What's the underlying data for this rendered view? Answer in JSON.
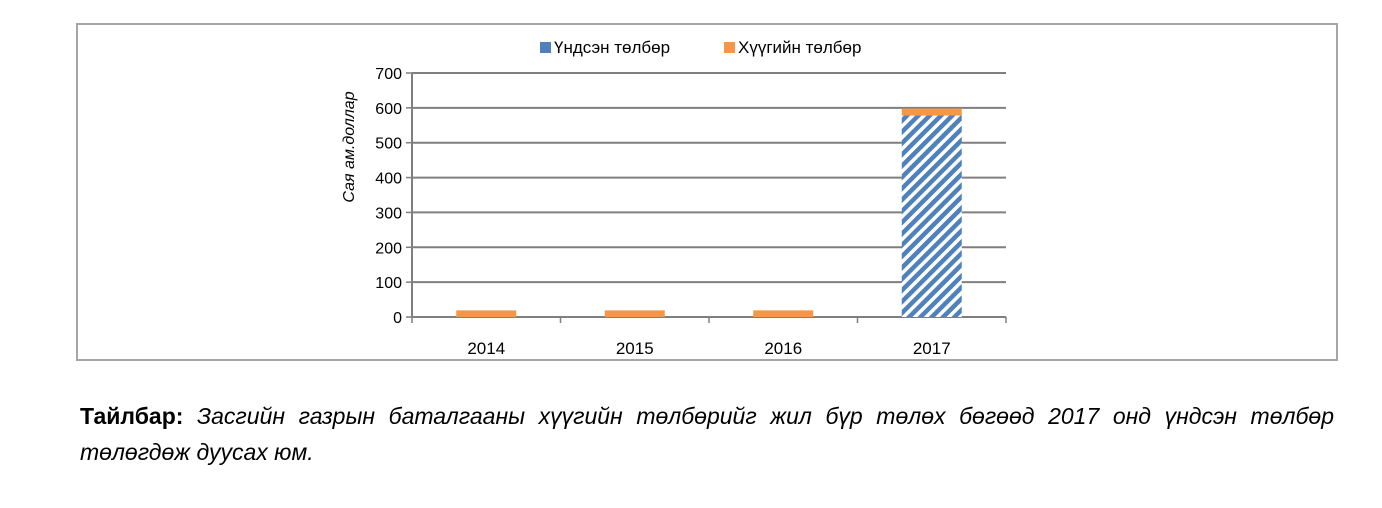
{
  "chart_data": {
    "type": "bar",
    "stacked": true,
    "categories": [
      "2014",
      "2015",
      "2016",
      "2017"
    ],
    "series": [
      {
        "name": "Үндсэн төлбөр",
        "values": [
          0,
          0,
          0,
          578
        ],
        "color": "#4f81bd",
        "pattern": "diagonal-stripes"
      },
      {
        "name": "Хүүгийн төлбөр",
        "values": [
          19,
          19,
          19,
          20
        ],
        "color": "#f79646"
      }
    ],
    "ylabel": "Сая ам.доллар",
    "ylim": [
      0,
      700
    ],
    "yticks": [
      0,
      100,
      200,
      300,
      400,
      500,
      600,
      700
    ],
    "grid": true,
    "legend": "top"
  },
  "note": {
    "label": "Тайлбар:",
    "text": " Засгийн газрын баталгааны хүүгийн төлбөрийг жил бүр төлөх бөгөөд 2017 онд үндсэн төлбөр төлөгдөж дуусах юм."
  }
}
